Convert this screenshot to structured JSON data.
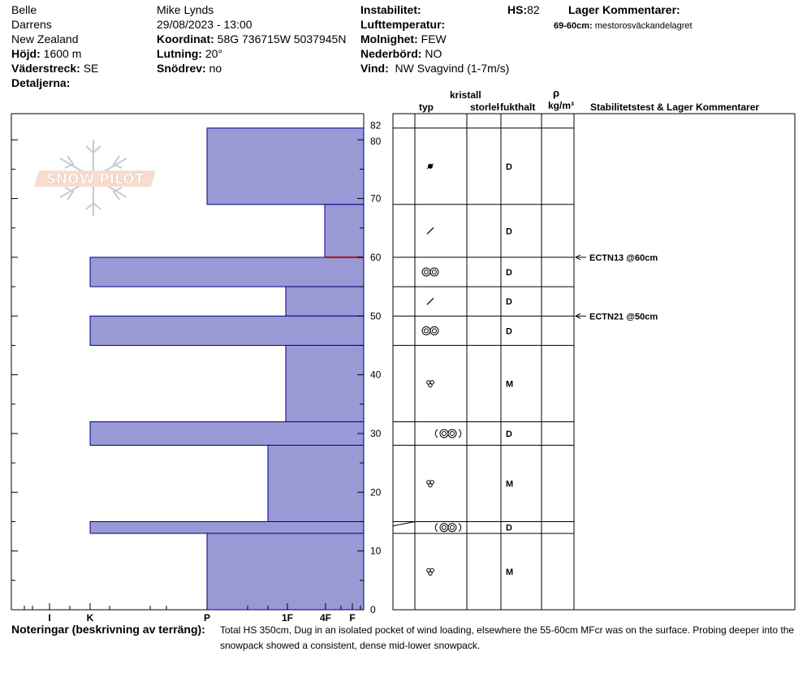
{
  "header": {
    "col1": [
      "Belle",
      "Darrens",
      "New Zealand"
    ],
    "hojd": {
      "label": "Höjd:",
      "value": "1600 m"
    },
    "vaderstreck": {
      "label": "Väderstreck:",
      "value": "SE"
    },
    "detaljerna": {
      "label": "Detaljerna:"
    },
    "observer": "Mike Lynds",
    "datetime": "29/08/2023 - 13:00",
    "koordinat": {
      "label": "Koordinat:",
      "value": "58G 736715W 5037945N"
    },
    "lutning": {
      "label": "Lutning:",
      "value": "20°"
    },
    "snodrev": {
      "label": "Snödrev:",
      "value": "no"
    },
    "instabilitet": {
      "label": "Instabilitet:"
    },
    "lufttemperatur": {
      "label": "Lufttemperatur:"
    },
    "molnighet": {
      "label": "Molnighet:",
      "value": "FEW"
    },
    "nederbord": {
      "label": "Nederbörd:",
      "value": "NO"
    },
    "vind": {
      "label": "Vind:",
      "value": "NW Svagvind (1-7m/s)"
    },
    "hs": {
      "label": "HS:",
      "value": "82"
    },
    "lager_title": "Lager Kommentarer:",
    "lager_comment": {
      "range": "69-60cm:",
      "text": "mestorosväckandelagret"
    }
  },
  "logo": {
    "text": "SNOW PILOT"
  },
  "hardness_axis": [
    "I",
    "K",
    "P",
    "1F",
    "4F",
    "F"
  ],
  "depth_ticks": [
    "0",
    "10",
    "20",
    "30",
    "40",
    "50",
    "60",
    "70",
    "80",
    "82"
  ],
  "columns": {
    "kristall": "kristall",
    "typ": "typ",
    "storlek": "storlek",
    "fukthalt": "fukthalt",
    "rho": "ρ",
    "density_unit": "kg/m³",
    "stab": "Stabilitetstest & Lager Kommentarer"
  },
  "layers": [
    {
      "top": 82,
      "bottom": 69,
      "hardness": "P",
      "grain": "precip-particle",
      "moisture": "D"
    },
    {
      "top": 69,
      "bottom": 60,
      "hardness": "4F",
      "grain": "decomposing",
      "moisture": "D"
    },
    {
      "top": 60,
      "bottom": 55,
      "hardness": "K",
      "grain": "melt-freeze",
      "moisture": "D"
    },
    {
      "top": 55,
      "bottom": 50,
      "hardness": "1F",
      "grain": "decomposing",
      "moisture": "D"
    },
    {
      "top": 50,
      "bottom": 45,
      "hardness": "K",
      "grain": "melt-freeze",
      "moisture": "D"
    },
    {
      "top": 45,
      "bottom": 32,
      "hardness": "1F",
      "grain": "rounded",
      "moisture": "M"
    },
    {
      "top": 32,
      "bottom": 28,
      "hardness": "K",
      "grain": "melt-freeze-crust",
      "moisture": "D"
    },
    {
      "top": 28,
      "bottom": 15,
      "hardness": "1F-",
      "grain": "rounded",
      "moisture": "M"
    },
    {
      "top": 15,
      "bottom": 13,
      "hardness": "K",
      "grain": "melt-freeze-crust",
      "moisture": "D"
    },
    {
      "top": 13,
      "bottom": 0,
      "hardness": "P",
      "grain": "rounded",
      "moisture": "M"
    }
  ],
  "tests": [
    {
      "depth": 60,
      "label": "ECTN13 @60cm"
    },
    {
      "depth": 50,
      "label": "ECTN21 @50cm"
    }
  ],
  "notes": {
    "label": "Noteringar (beskrivning av terräng):",
    "text": "Total HS 350cm, Dug in an isolated pocket of wind loading, elsewhere the 55-60cm MFcr was on the surface. Probing deeper into the snowpack showed a consistent, dense mid-lower snowpack."
  },
  "colors": {
    "layer_fill": "#9999d6",
    "layer_edge": "#000080",
    "crust_line": "#b01010"
  }
}
